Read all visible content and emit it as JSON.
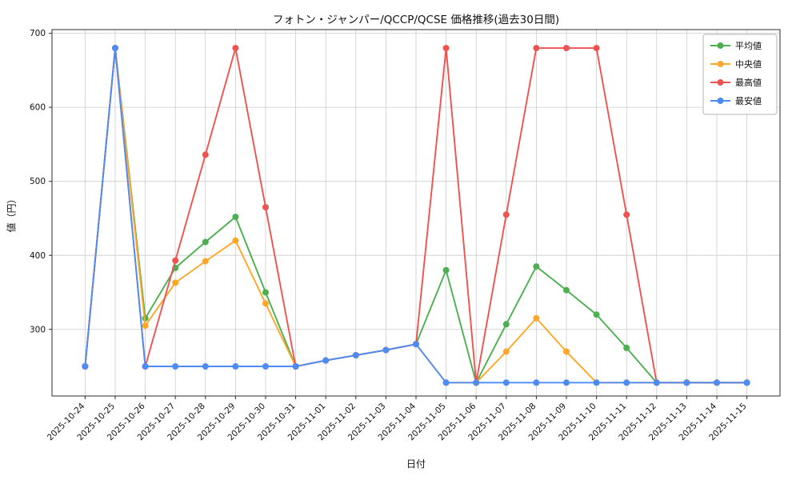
{
  "chart_data": {
    "type": "line",
    "title": "フォトン・ジャンパー/QCCP/QCSE 価格推移(過去30日間)",
    "xlabel": "日付",
    "ylabel": "値（円）",
    "grid": true,
    "legend_position": "upper right",
    "ylim": [
      210,
      705
    ],
    "yticks": [
      300,
      400,
      500,
      600,
      700
    ],
    "x": [
      "2025-10-24",
      "2025-10-25",
      "2025-10-26",
      "2025-10-27",
      "2025-10-28",
      "2025-10-29",
      "2025-10-30",
      "2025-10-31",
      "2025-11-01",
      "2025-11-02",
      "2025-11-03",
      "2025-11-04",
      "2025-11-05",
      "2025-11-06",
      "2025-11-07",
      "2025-11-08",
      "2025-11-09",
      "2025-11-10",
      "2025-11-11",
      "2025-11-12",
      "2025-11-13",
      "2025-11-14",
      "2025-11-15"
    ],
    "series": [
      {
        "name": "平均値",
        "color": "#4caf50",
        "values": [
          250,
          680,
          315,
          383,
          418,
          452,
          350,
          250,
          258,
          265,
          272,
          280,
          380,
          228,
          307,
          385,
          353,
          320,
          275,
          228,
          228,
          228,
          228
        ]
      },
      {
        "name": "中央値",
        "color": "#ffa726",
        "values": [
          250,
          680,
          305,
          363,
          392,
          420,
          335,
          250,
          258,
          265,
          272,
          280,
          228,
          228,
          270,
          315,
          270,
          228,
          228,
          228,
          228,
          228,
          228
        ]
      },
      {
        "name": "最高値",
        "color": "#ef5350",
        "values": [
          250,
          680,
          250,
          393,
          536,
          680,
          465,
          250,
          258,
          265,
          272,
          280,
          680,
          228,
          455,
          680,
          680,
          680,
          455,
          228,
          228,
          228,
          228
        ]
      },
      {
        "name": "最安値",
        "color": "#4e8cf5",
        "values": [
          250,
          680,
          250,
          250,
          250,
          250,
          250,
          250,
          258,
          265,
          272,
          280,
          228,
          228,
          228,
          228,
          228,
          228,
          228,
          228,
          228,
          228,
          228
        ]
      }
    ],
    "colors": {
      "grid": "#cccccc",
      "axis": "#2b2b2b",
      "legend_border": "#b3b3b3",
      "background": "#ffffff"
    }
  }
}
